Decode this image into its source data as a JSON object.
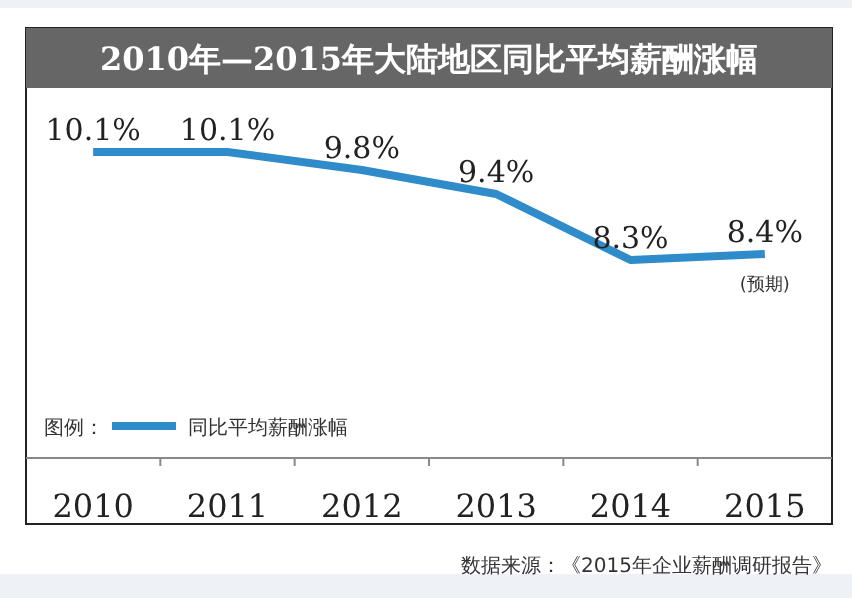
{
  "chart_data": {
    "type": "line",
    "title": "2010年—2015年大陆地区同比平均薪酬涨幅",
    "categories": [
      "2010",
      "2011",
      "2012",
      "2013",
      "2014",
      "2015"
    ],
    "series": [
      {
        "name": "同比平均薪酬涨幅",
        "color": "#2f8bc9",
        "values": [
          10.1,
          10.1,
          9.8,
          9.4,
          8.3,
          8.4
        ],
        "value_labels": [
          "10.1%",
          "10.1%",
          "9.8%",
          "9.4%",
          "8.3%",
          "8.4%"
        ]
      }
    ],
    "legend": "bottom left",
    "legend_title": "图例：",
    "marker": "none",
    "line_style": "solid",
    "grid": false,
    "annotations": [
      {
        "text": "(预期)",
        "x": "2015",
        "y": 8.4
      },
      "数据来源：《2015年企业薪酬调研报告》"
    ]
  }
}
